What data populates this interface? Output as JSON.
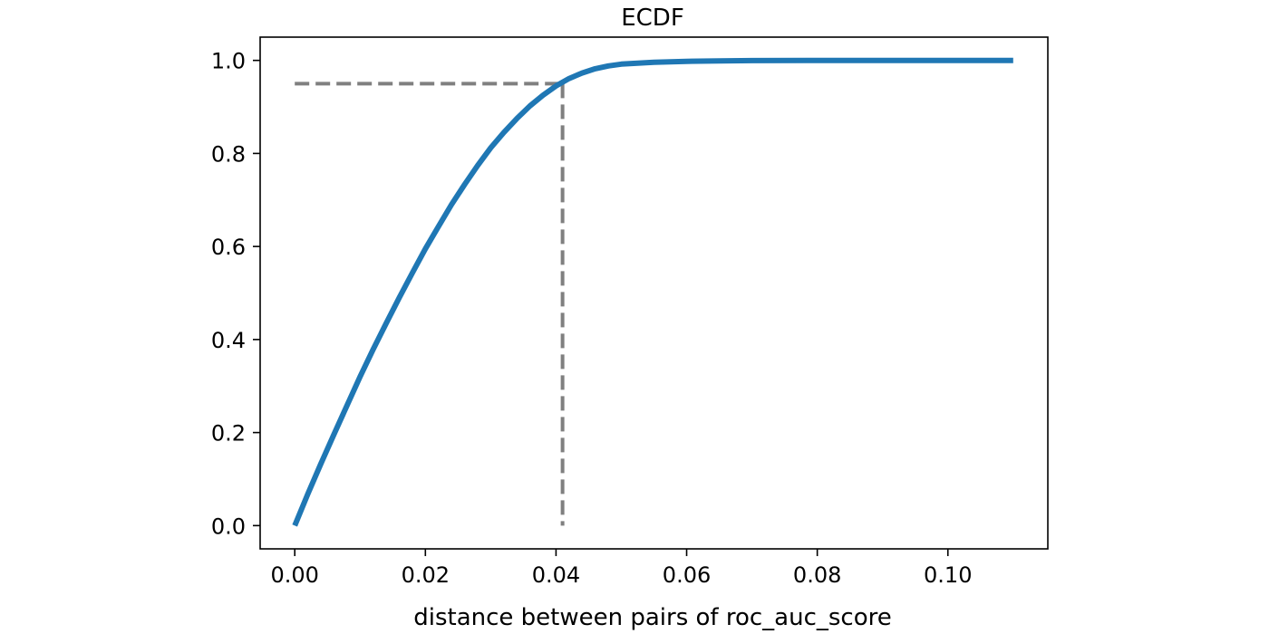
{
  "chart_data": {
    "type": "line",
    "title": "ECDF",
    "xlabel": "distance between pairs of roc_auc_score",
    "ylabel": "",
    "xlim": [
      -0.0053,
      0.1153
    ],
    "ylim": [
      -0.05,
      1.05
    ],
    "xticks": [
      0.0,
      0.02,
      0.04,
      0.06,
      0.08,
      0.1
    ],
    "xtick_labels": [
      "0.00",
      "0.02",
      "0.04",
      "0.06",
      "0.08",
      "0.10"
    ],
    "yticks": [
      0.0,
      0.2,
      0.4,
      0.6,
      0.8,
      1.0
    ],
    "ytick_labels": [
      "0.0",
      "0.2",
      "0.4",
      "0.6",
      "0.8",
      "1.0"
    ],
    "grid": false,
    "series": [
      {
        "color": "#1f77b4",
        "x": [
          0.0,
          0.002,
          0.004,
          0.006,
          0.008,
          0.01,
          0.012,
          0.014,
          0.016,
          0.018,
          0.02,
          0.022,
          0.024,
          0.026,
          0.028,
          0.03,
          0.032,
          0.034,
          0.036,
          0.038,
          0.04,
          0.042,
          0.044,
          0.046,
          0.048,
          0.05,
          0.055,
          0.06,
          0.065,
          0.07,
          0.08,
          0.09,
          0.1,
          0.11
        ],
        "y": [
          0.0,
          0.068,
          0.133,
          0.196,
          0.258,
          0.32,
          0.379,
          0.435,
          0.49,
          0.543,
          0.595,
          0.643,
          0.69,
          0.733,
          0.774,
          0.812,
          0.845,
          0.875,
          0.902,
          0.925,
          0.945,
          0.961,
          0.973,
          0.982,
          0.988,
          0.992,
          0.996,
          0.998,
          0.999,
          0.9995,
          1.0,
          1.0,
          1.0,
          1.0
        ]
      }
    ],
    "reference_lines": {
      "color": "#808080",
      "quantile": 0.95,
      "x_at_quantile": 0.041
    }
  }
}
